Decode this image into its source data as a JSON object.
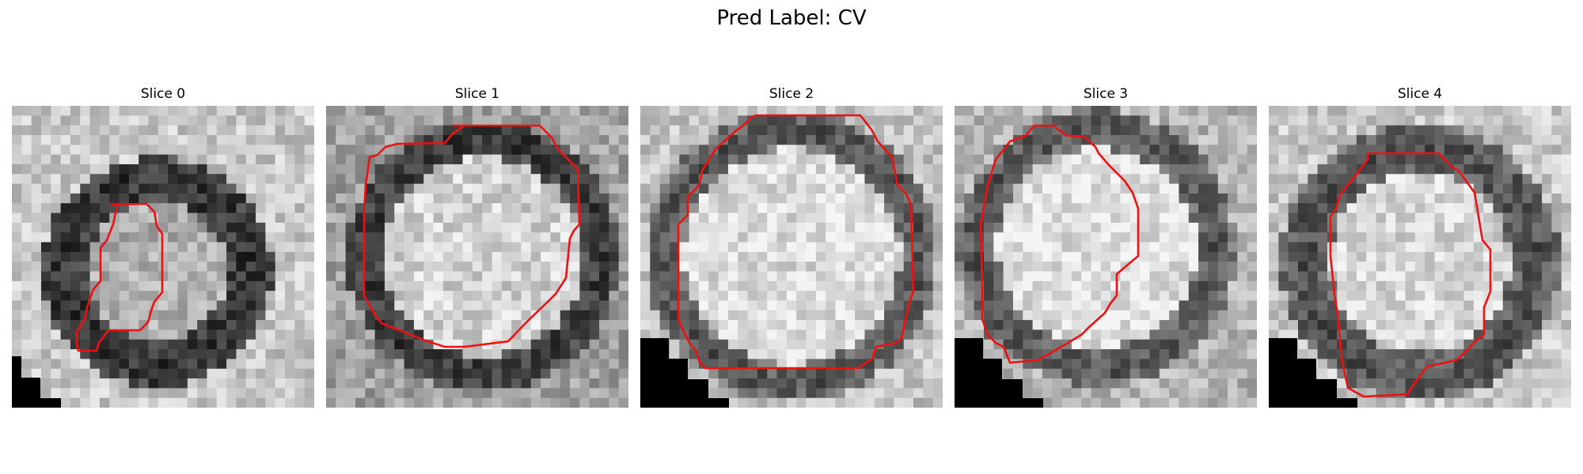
{
  "figure": {
    "title": "Pred Label: CV"
  },
  "slices": [
    {
      "title": "Slice 0",
      "image_description": "grayscale microscopy crop with dark ring surrounding bright interior",
      "contour_color": "#ee1111",
      "corner_mask_color": "#000000"
    },
    {
      "title": "Slice 1",
      "image_description": "grayscale microscopy crop with bright textured interior",
      "contour_color": "#ee1111",
      "corner_mask_color": "#000000"
    },
    {
      "title": "Slice 2",
      "image_description": "grayscale microscopy crop with large bright interior",
      "contour_color": "#ee1111",
      "corner_mask_color": "#000000"
    },
    {
      "title": "Slice 3",
      "image_description": "grayscale microscopy crop with bright interior and dark ring",
      "contour_color": "#ee1111",
      "corner_mask_color": "#000000"
    },
    {
      "title": "Slice 4",
      "image_description": "grayscale microscopy crop with grey ring and bright interior",
      "contour_color": "#ee1111",
      "corner_mask_color": "#000000"
    }
  ]
}
